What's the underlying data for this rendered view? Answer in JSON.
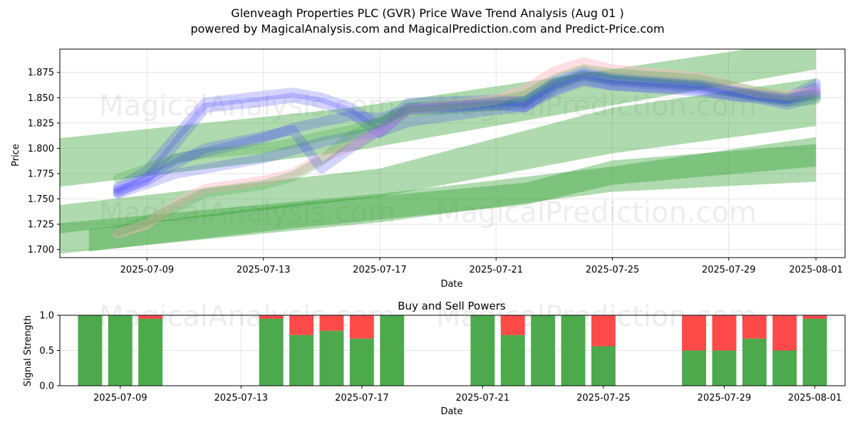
{
  "header": {
    "title_line1": "Glenveagh Properties PLC (GVR) Price Wave Trend Analysis (Aug 01 )",
    "title_line2": "powered by MagicalAnalysis.com and MagicalPrediction.com and Predict-Price.com"
  },
  "watermarks": [
    "MagicalAnalysis.com",
    "MagicalPrediction.com"
  ],
  "chart_data": [
    {
      "type": "area",
      "xlabel": "Date",
      "ylabel": "Price",
      "xlim": [
        "2025-07-06",
        "2025-08-02"
      ],
      "ylim": [
        1.692,
        1.898
      ],
      "x_ticks": [
        "2025-07-09",
        "2025-07-13",
        "2025-07-17",
        "2025-07-21",
        "2025-07-25",
        "2025-07-29",
        "2025-08-01"
      ],
      "y_ticks": [
        1.7,
        1.725,
        1.75,
        1.775,
        1.8,
        1.825,
        1.85,
        1.875
      ],
      "grid": true,
      "colors": {
        "green": "#2e9e2e",
        "blue": "#3a3aff",
        "pink": "#ffb6c1"
      },
      "green_bands": [
        {
          "x": [
            "2025-07-06",
            "2025-07-16",
            "2025-08-01"
          ],
          "upper": [
            1.81,
            1.84,
            1.908
          ],
          "lower": [
            1.762,
            1.797,
            1.878
          ]
        },
        {
          "x": [
            "2025-07-06",
            "2025-07-17",
            "2025-07-25",
            "2025-08-01"
          ],
          "upper": [
            1.744,
            1.78,
            1.84,
            1.869
          ],
          "lower": [
            1.716,
            1.752,
            1.795,
            1.822
          ]
        },
        {
          "x": [
            "2025-07-06",
            "2025-07-17",
            "2025-07-25",
            "2025-08-01"
          ],
          "upper": [
            1.726,
            1.755,
            1.782,
            1.811
          ],
          "lower": [
            1.696,
            1.727,
            1.757,
            1.767
          ]
        },
        {
          "x": [
            "2025-07-07",
            "2025-07-14",
            "2025-07-22",
            "2025-07-25",
            "2025-08-01"
          ],
          "upper": [
            1.72,
            1.745,
            1.766,
            1.788,
            1.804
          ],
          "lower": [
            1.698,
            1.721,
            1.744,
            1.764,
            1.782
          ]
        }
      ],
      "wave_x": [
        "2025-07-08",
        "2025-07-09",
        "2025-07-10",
        "2025-07-11",
        "2025-07-13",
        "2025-07-14",
        "2025-07-15",
        "2025-07-16",
        "2025-07-17",
        "2025-07-18",
        "2025-07-21",
        "2025-07-22",
        "2025-07-23",
        "2025-07-24",
        "2025-07-25",
        "2025-07-28",
        "2025-07-29",
        "2025-07-30",
        "2025-07-31",
        "2025-08-01"
      ],
      "waves": [
        {
          "color": "blue",
          "values": [
            1.756,
            1.77,
            1.805,
            1.84,
            1.846,
            1.85,
            1.845,
            1.835,
            1.815,
            1.84,
            1.843,
            1.84,
            1.862,
            1.872,
            1.866,
            1.86,
            1.856,
            1.852,
            1.848,
            1.86
          ]
        },
        {
          "color": "blue",
          "values": [
            1.762,
            1.778,
            1.812,
            1.845,
            1.852,
            1.855,
            1.85,
            1.84,
            1.822,
            1.845,
            1.848,
            1.845,
            1.866,
            1.876,
            1.87,
            1.864,
            1.858,
            1.853,
            1.85,
            1.864
          ]
        },
        {
          "color": "blue",
          "values": [
            1.76,
            1.772,
            1.79,
            1.796,
            1.81,
            1.82,
            1.826,
            1.832,
            1.83,
            1.838,
            1.842,
            1.843,
            1.858,
            1.868,
            1.862,
            1.858,
            1.853,
            1.85,
            1.846,
            1.854
          ]
        },
        {
          "color": "blue",
          "values": [
            1.755,
            1.765,
            1.775,
            1.78,
            1.79,
            1.798,
            1.806,
            1.812,
            1.816,
            1.826,
            1.838,
            1.841,
            1.856,
            1.866,
            1.862,
            1.856,
            1.852,
            1.849,
            1.843,
            1.85
          ]
        },
        {
          "color": "pink",
          "values": [
            1.716,
            1.725,
            1.745,
            1.76,
            1.768,
            1.775,
            1.79,
            1.802,
            1.818,
            1.838,
            1.848,
            1.858,
            1.876,
            1.885,
            1.878,
            1.87,
            1.862,
            1.855,
            1.852,
            1.856
          ]
        },
        {
          "color": "green",
          "values": [
            1.718,
            1.728,
            1.742,
            1.756,
            1.764,
            1.772,
            1.788,
            1.812,
            1.826,
            1.84,
            1.846,
            1.852,
            1.868,
            1.878,
            1.874,
            1.868,
            1.862,
            1.856,
            1.85,
            1.852
          ]
        },
        {
          "color": "green",
          "values": [
            1.77,
            1.78,
            1.79,
            1.795,
            1.8,
            1.805,
            1.812,
            1.818,
            1.826,
            1.836,
            1.842,
            1.846,
            1.862,
            1.872,
            1.868,
            1.862,
            1.856,
            1.851,
            1.846,
            1.848
          ]
        },
        {
          "color": "blue",
          "values": [
            1.758,
            1.768,
            1.785,
            1.8,
            1.812,
            1.818,
            1.78,
            1.8,
            1.818,
            1.838,
            1.845,
            1.847,
            1.864,
            1.874,
            1.868,
            1.862,
            1.857,
            1.852,
            1.848,
            1.856
          ]
        }
      ]
    },
    {
      "type": "bar",
      "title": "Buy and Sell Powers",
      "xlabel": "Date",
      "ylabel": "Signal Strength",
      "xlim": [
        "2025-07-07",
        "2025-08-02"
      ],
      "ylim": [
        0,
        1
      ],
      "y_ticks": [
        0.0,
        0.5,
        1.0
      ],
      "x_ticks": [
        "2025-07-09",
        "2025-07-13",
        "2025-07-17",
        "2025-07-21",
        "2025-07-25",
        "2025-07-29",
        "2025-08-01"
      ],
      "grid": true,
      "colors": {
        "buy": "#4caa4c",
        "sell": "#ff4a4a"
      },
      "categories": [
        "2025-07-08",
        "2025-07-09",
        "2025-07-10",
        "2025-07-14",
        "2025-07-15",
        "2025-07-16",
        "2025-07-17",
        "2025-07-18",
        "2025-07-21",
        "2025-07-22",
        "2025-07-23",
        "2025-07-24",
        "2025-07-25",
        "2025-07-28",
        "2025-07-29",
        "2025-07-30",
        "2025-07-31",
        "2025-08-01"
      ],
      "series": [
        {
          "name": "Buy",
          "values": [
            1.0,
            1.0,
            0.95,
            0.95,
            0.72,
            0.78,
            0.67,
            1.0,
            1.0,
            0.72,
            1.0,
            1.0,
            0.56,
            0.5,
            0.5,
            0.67,
            0.5,
            0.95
          ]
        },
        {
          "name": "Sell",
          "values": [
            0.0,
            0.0,
            0.05,
            0.05,
            0.28,
            0.22,
            0.33,
            0.0,
            0.0,
            0.28,
            0.0,
            0.0,
            0.44,
            0.5,
            0.5,
            0.33,
            0.5,
            0.05
          ]
        }
      ]
    }
  ]
}
